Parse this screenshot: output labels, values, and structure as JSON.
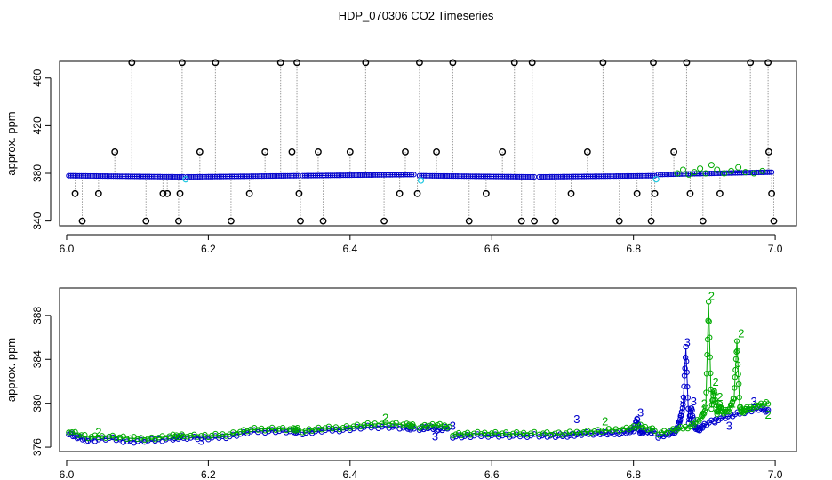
{
  "figure_title": "HDP_070306  CO2 Timeseries",
  "colors": {
    "black": "#000000",
    "gray": "#9a9a9a",
    "blue": "#0000cc",
    "green": "#00aa00",
    "cyan": "#22c8e0"
  },
  "chart_data": [
    {
      "type": "scatter",
      "title": "",
      "xlabel": "",
      "ylabel": "approx. ppm",
      "xlim": [
        5.99,
        7.03
      ],
      "ylim": [
        336,
        474
      ],
      "x_ticks": [
        6.0,
        6.2,
        6.4,
        6.6,
        6.8,
        7.0
      ],
      "x_tick_labels": [
        "6.0",
        "6.2",
        "6.4",
        "6.6",
        "6.8",
        "7.0"
      ],
      "y_ticks": [
        340,
        380,
        420,
        460
      ],
      "y_tick_labels": [
        "340",
        "380",
        "420",
        "460"
      ],
      "grid": false,
      "legend": "none",
      "baseline_series": {
        "name": "",
        "color": "blue",
        "segments": [
          {
            "x": [
              6.003,
              6.165
            ],
            "y": [
              378,
              377
            ]
          },
          {
            "x": [
              6.17,
              6.327
            ],
            "y": [
              377,
              378
            ]
          },
          {
            "x": [
              6.333,
              6.49
            ],
            "y": [
              378,
              379
            ]
          },
          {
            "x": [
              6.498,
              6.66
            ],
            "y": [
              378,
              377
            ]
          },
          {
            "x": [
              6.667,
              6.83
            ],
            "y": [
              377,
              378
            ]
          },
          {
            "x": [
              6.835,
              6.995
            ],
            "y": [
              379,
              381
            ]
          }
        ]
      },
      "outlier_points": {
        "color": "black",
        "x": [
          6.012,
          6.022,
          6.045,
          6.068,
          6.092,
          6.112,
          6.136,
          6.142,
          6.158,
          6.16,
          6.163,
          6.188,
          6.21,
          6.232,
          6.258,
          6.28,
          6.302,
          6.318,
          6.325,
          6.328,
          6.33,
          6.355,
          6.362,
          6.4,
          6.422,
          6.448,
          6.47,
          6.478,
          6.495,
          6.498,
          6.522,
          6.545,
          6.568,
          6.592,
          6.615,
          6.632,
          6.642,
          6.657,
          6.66,
          6.69,
          6.712,
          6.735,
          6.757,
          6.78,
          6.805,
          6.825,
          6.828,
          6.83,
          6.857,
          6.875,
          6.88,
          6.898,
          6.922,
          6.965,
          6.99,
          6.991,
          6.995,
          6.998
        ],
        "y": [
          363,
          340,
          363,
          398,
          473,
          340,
          363,
          363,
          340,
          363,
          473,
          398,
          473,
          340,
          363,
          398,
          473,
          398,
          473,
          363,
          340,
          398,
          340,
          398,
          473,
          340,
          363,
          398,
          363,
          473,
          398,
          473,
          340,
          363,
          398,
          473,
          340,
          473,
          340,
          340,
          363,
          398,
          473,
          340,
          363,
          340,
          473,
          363,
          398,
          473,
          363,
          340,
          363,
          473,
          473,
          398,
          363,
          340
        ]
      },
      "green_points": {
        "color": "green",
        "x": [
          6.862,
          6.87,
          6.878,
          6.886,
          6.894,
          6.902,
          6.91,
          6.918,
          6.928,
          6.938,
          6.948,
          6.958,
          6.97,
          6.982
        ],
        "y": [
          380,
          383,
          379,
          381,
          384,
          380,
          387,
          383,
          380,
          382,
          385,
          381,
          380,
          382
        ]
      },
      "cyan_points": {
        "color": "cyan",
        "x": [
          6.168,
          6.5,
          6.832
        ],
        "y": [
          375,
          374,
          375
        ]
      }
    },
    {
      "type": "line",
      "title": "",
      "xlabel": "",
      "ylabel": "approx. ppm",
      "xlim": [
        5.99,
        7.03
      ],
      "ylim": [
        375.6,
        390.5
      ],
      "x_ticks": [
        6.0,
        6.2,
        6.4,
        6.6,
        6.8,
        7.0
      ],
      "x_tick_labels": [
        "6.0",
        "6.2",
        "6.4",
        "6.6",
        "6.8",
        "7.0"
      ],
      "y_ticks": [
        376,
        380,
        384,
        388
      ],
      "y_tick_labels": [
        "376",
        "380",
        "384",
        "388"
      ],
      "grid": false,
      "legend": "none",
      "series": [
        {
          "name": "",
          "color": "blue",
          "segments": [
            {
              "x": [
                6.003,
                6.015,
                6.03,
                6.06,
                6.09,
                6.12,
                6.15,
                6.165
              ],
              "y": [
                377.3,
                376.9,
                376.6,
                376.8,
                376.5,
                376.6,
                376.8,
                376.9
              ]
            },
            {
              "x": [
                6.17,
                6.2,
                6.23,
                6.26,
                6.29,
                6.32,
                6.327
              ],
              "y": [
                376.9,
                376.8,
                377.0,
                377.4,
                377.5,
                377.4,
                377.5
              ]
            },
            {
              "x": [
                6.333,
                6.36,
                6.39,
                6.42,
                6.45,
                6.48,
                6.49
              ],
              "y": [
                377.3,
                377.5,
                377.6,
                377.8,
                377.9,
                377.7,
                377.8
              ]
            },
            {
              "x": [
                6.498,
                6.51,
                6.525,
                6.54
              ],
              "y": [
                377.7,
                377.8,
                377.6,
                377.8
              ]
            },
            {
              "x": [
                6.545,
                6.57,
                6.6,
                6.63,
                6.66
              ],
              "y": [
                377.0,
                377.0,
                377.1,
                377.0,
                377.1
              ]
            },
            {
              "x": [
                6.667,
                6.69,
                6.71,
                6.73,
                6.75,
                6.77,
                6.79,
                6.8,
                6.805,
                6.808,
                6.815,
                6.83
              ],
              "y": [
                377.1,
                377.0,
                377.1,
                377.2,
                377.3,
                377.2,
                377.4,
                377.5,
                378.6,
                377.5,
                377.3,
                377.4
              ]
            },
            {
              "x": [
                6.835,
                6.85,
                6.86,
                6.866,
                6.87,
                6.874,
                6.878,
                6.882,
                6.886,
                6.892,
                6.9,
                6.92,
                6.94,
                6.96,
                6.98,
                6.99
              ],
              "y": [
                377.0,
                377.2,
                377.5,
                378.5,
                379.8,
                385.0,
                378.3,
                379.6,
                377.8,
                377.6,
                378.0,
                378.6,
                378.9,
                379.3,
                379.5,
                379.3
              ]
            }
          ]
        },
        {
          "name": "",
          "color": "green",
          "segments": [
            {
              "x": [
                6.003,
                6.03,
                6.06,
                6.09,
                6.12,
                6.15,
                6.165
              ],
              "y": [
                377.5,
                376.9,
                377.0,
                376.8,
                376.8,
                377.0,
                377.1
              ]
            },
            {
              "x": [
                6.17,
                6.2,
                6.23,
                6.26,
                6.29,
                6.32,
                6.327
              ],
              "y": [
                377.1,
                377.0,
                377.2,
                377.6,
                377.7,
                377.6,
                377.7
              ]
            },
            {
              "x": [
                6.333,
                6.36,
                6.39,
                6.42,
                6.45,
                6.48,
                6.49
              ],
              "y": [
                377.5,
                377.7,
                377.8,
                378.0,
                378.2,
                378.0,
                378.0
              ]
            },
            {
              "x": [
                6.498,
                6.52,
                6.54
              ],
              "y": [
                377.9,
                378.0,
                377.9
              ]
            },
            {
              "x": [
                6.545,
                6.57,
                6.6,
                6.63,
                6.66
              ],
              "y": [
                377.2,
                377.2,
                377.3,
                377.2,
                377.3
              ]
            },
            {
              "x": [
                6.667,
                6.7,
                6.73,
                6.76,
                6.79,
                6.81,
                6.83
              ],
              "y": [
                377.3,
                377.2,
                377.4,
                377.5,
                377.7,
                377.9,
                377.6
              ]
            },
            {
              "x": [
                6.835,
                6.86,
                6.88,
                6.895,
                6.902,
                6.906,
                6.91,
                6.914,
                6.918,
                6.922,
                6.926,
                6.935,
                6.942,
                6.946,
                6.95,
                6.954,
                6.96,
                6.975,
                6.99
              ],
              "y": [
                377.3,
                377.6,
                377.9,
                378.6,
                379.5,
                389.1,
                379.6,
                381.2,
                379.0,
                379.9,
                379.1,
                379.4,
                380.5,
                385.7,
                379.6,
                379.2,
                379.5,
                379.8,
                380.0
              ]
            }
          ]
        }
      ],
      "annotations": [
        {
          "text": "3",
          "color": "blue",
          "x": 6.19,
          "y": 376.2
        },
        {
          "text": "3",
          "color": "blue",
          "x": 6.52,
          "y": 376.6
        },
        {
          "text": "3",
          "color": "blue",
          "x": 6.545,
          "y": 377.6
        },
        {
          "text": "3",
          "color": "blue",
          "x": 6.72,
          "y": 378.2
        },
        {
          "text": "3",
          "color": "blue",
          "x": 6.81,
          "y": 378.8
        },
        {
          "text": "3",
          "color": "blue",
          "x": 6.866,
          "y": 378.2
        },
        {
          "text": "3",
          "color": "blue",
          "x": 6.87,
          "y": 380.0
        },
        {
          "text": "3",
          "color": "blue",
          "x": 6.876,
          "y": 385.2
        },
        {
          "text": "3",
          "color": "blue",
          "x": 6.885,
          "y": 379.8
        },
        {
          "text": "3",
          "color": "blue",
          "x": 6.915,
          "y": 378.0
        },
        {
          "text": "3",
          "color": "blue",
          "x": 6.935,
          "y": 377.6
        },
        {
          "text": "3",
          "color": "blue",
          "x": 6.97,
          "y": 379.8
        },
        {
          "text": "2",
          "color": "green",
          "x": 6.45,
          "y": 378.3
        },
        {
          "text": "2",
          "color": "green",
          "x": 6.76,
          "y": 378.0
        },
        {
          "text": "2",
          "color": "green",
          "x": 6.9,
          "y": 379.6
        },
        {
          "text": "2",
          "color": "green",
          "x": 6.91,
          "y": 389.4
        },
        {
          "text": "2",
          "color": "green",
          "x": 6.916,
          "y": 381.6
        },
        {
          "text": "2",
          "color": "green",
          "x": 6.922,
          "y": 380.2
        },
        {
          "text": "2",
          "color": "green",
          "x": 6.94,
          "y": 379.6
        },
        {
          "text": "2",
          "color": "green",
          "x": 6.952,
          "y": 386.0
        },
        {
          "text": "2",
          "color": "green",
          "x": 6.99,
          "y": 378.6
        },
        {
          "text": "2",
          "color": "green",
          "x": 6.045,
          "y": 377.0
        }
      ]
    }
  ]
}
